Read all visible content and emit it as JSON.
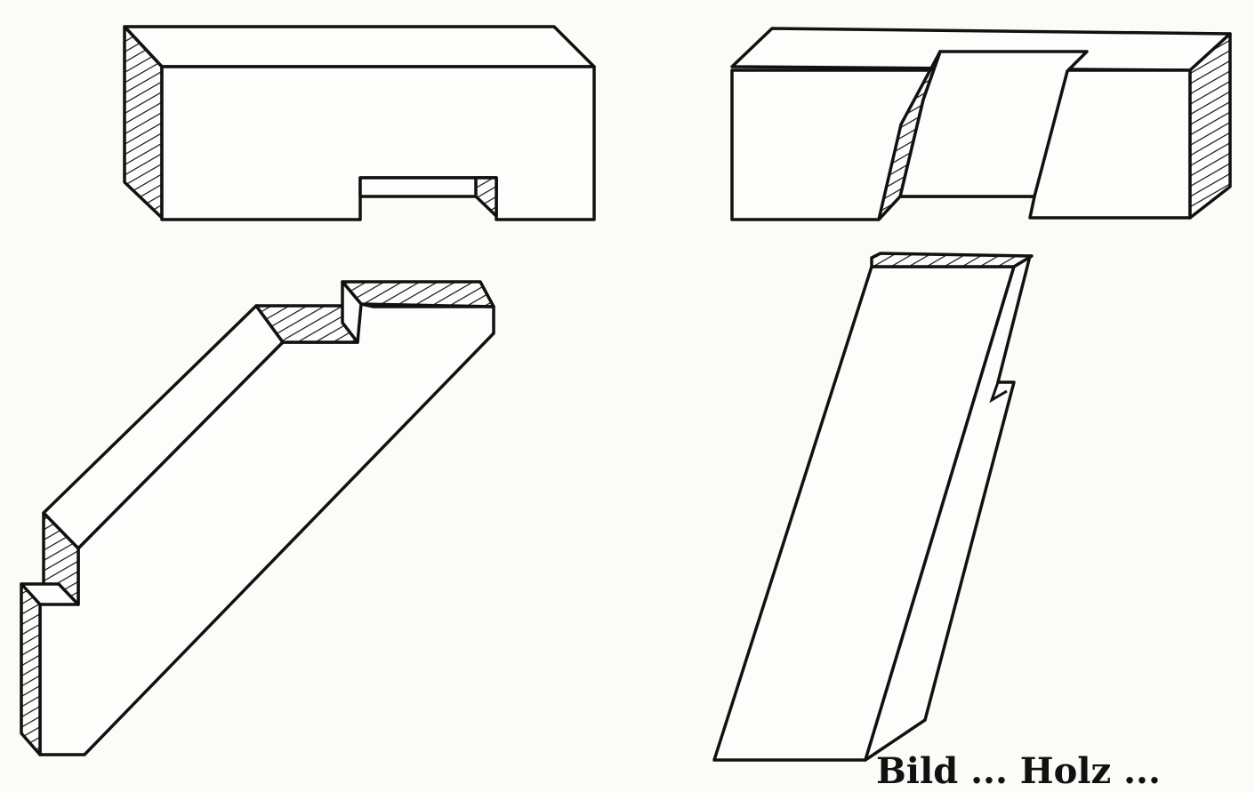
{
  "caption": "Bild ... Holz ...",
  "colors": {
    "ink": "#111111",
    "paper": "#fbfbf8"
  },
  "figures": [
    {
      "name": "halved-beam",
      "icon": "beam-with-notch"
    },
    {
      "name": "notched-rafter",
      "icon": "angled-rafter-with-step"
    },
    {
      "name": "slotted-beam",
      "icon": "beam-with-oblique-housing"
    },
    {
      "name": "tenon-brace",
      "icon": "angled-brace"
    }
  ]
}
